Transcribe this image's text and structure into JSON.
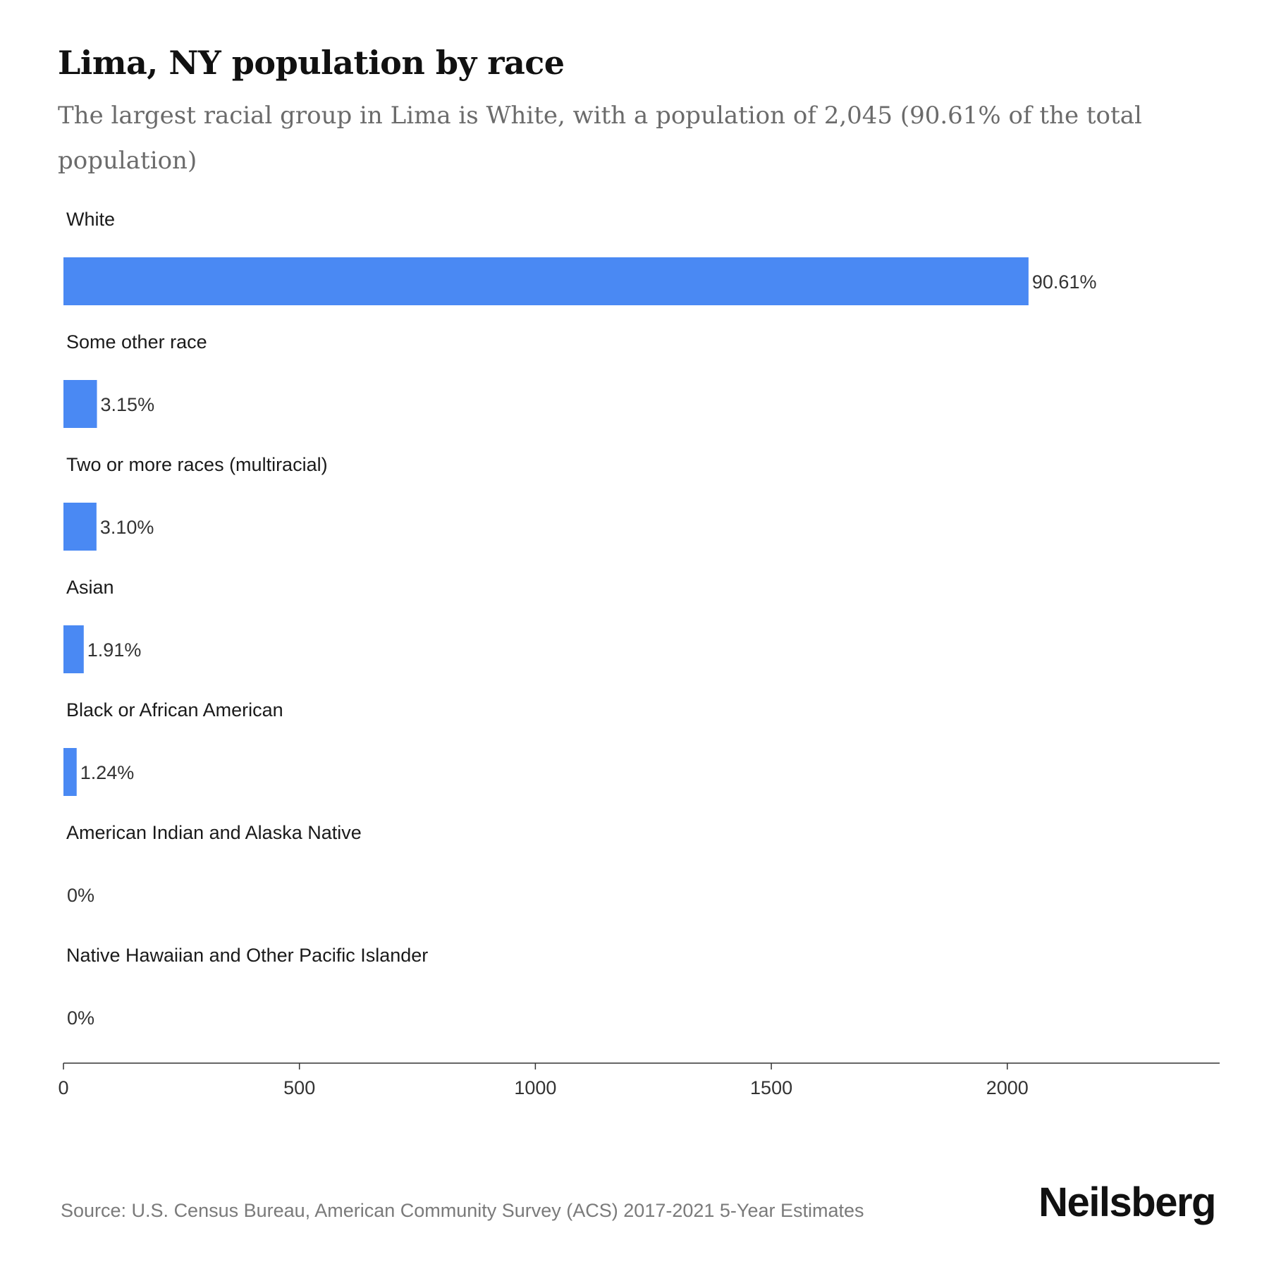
{
  "header": {
    "title": "Lima, NY population by race",
    "subtitle": "The largest racial group in Lima is White, with a population of 2,045 (90.61% of the total population)"
  },
  "chart_data": {
    "type": "bar",
    "orientation": "horizontal",
    "categories": [
      "White",
      "Some other race",
      "Two or more races (multiracial)",
      "Asian",
      "Black or African American",
      "American Indian and Alaska Native",
      "Native Hawaiian and Other Pacific Islander"
    ],
    "values": [
      2045,
      71,
      70,
      43,
      28,
      0,
      0
    ],
    "value_labels": [
      "90.61%",
      "3.15%",
      "3.10%",
      "1.91%",
      "1.24%",
      "0%",
      "0%"
    ],
    "xlim": [
      0,
      2450
    ],
    "x_ticks": [
      0,
      500,
      1000,
      1500,
      2000
    ],
    "bar_color": "#4a89f3",
    "grid": false,
    "legend": "none"
  },
  "footer": {
    "source": "Source: U.S. Census Bureau, American Community Survey (ACS) 2017-2021 5-Year Estimates",
    "brand": "Neilsberg"
  }
}
